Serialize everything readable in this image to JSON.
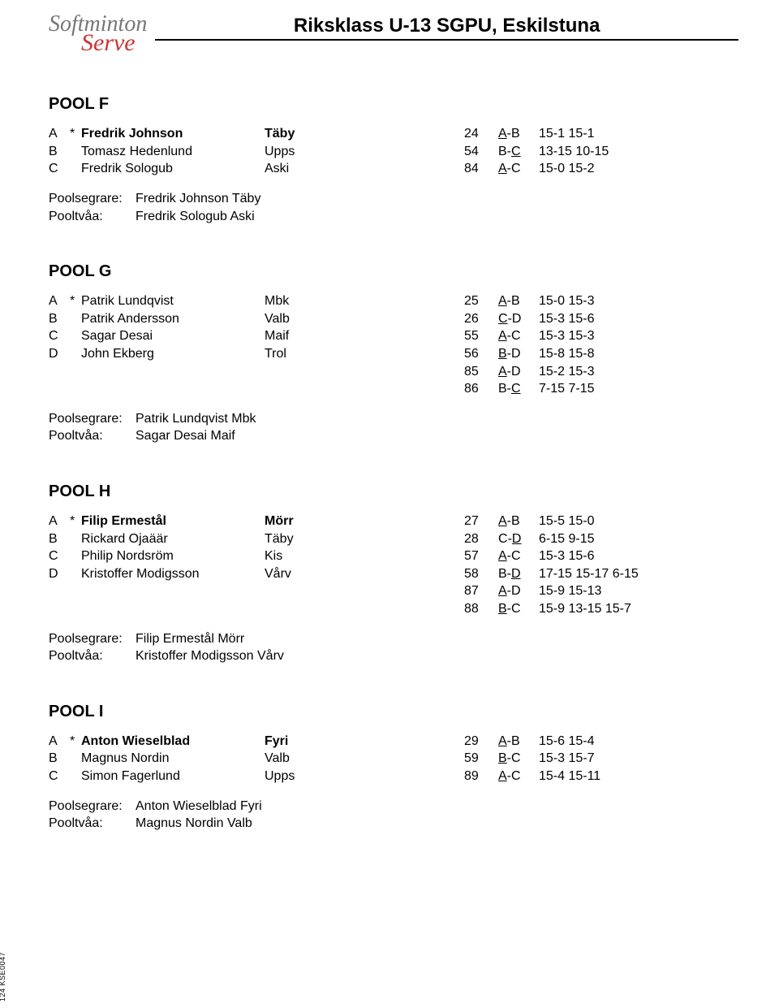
{
  "header": {
    "logo_top": "Softminton",
    "logo_bottom": "Serve",
    "title": "Riksklass U-13 SGPU, Eskilstuna"
  },
  "side_code": "124  KSE0047",
  "labels": {
    "poolsegrare": "Poolsegrare:",
    "pooltvaa": "Pooltvåa:"
  },
  "pools": [
    {
      "title": "POOL F",
      "players": [
        {
          "letter": "A",
          "star": "*",
          "name": "Fredrik Johnson",
          "club": "Täby",
          "bold": true
        },
        {
          "letter": "B",
          "star": "",
          "name": "Tomasz Hedenlund",
          "club": "Upps",
          "bold": false
        },
        {
          "letter": "C",
          "star": "",
          "name": "Fredrik Sologub",
          "club": "Aski",
          "bold": false
        }
      ],
      "results": [
        {
          "num": "24",
          "p1": "A",
          "p2": "B",
          "winner": "p1",
          "scores": "15-1  15-1"
        },
        {
          "num": "54",
          "p1": "B",
          "p2": "C",
          "winner": "p2",
          "scores": "13-15 10-15"
        },
        {
          "num": "84",
          "p1": "A",
          "p2": "C",
          "winner": "p1",
          "scores": "15-0  15-2"
        }
      ],
      "segrare": "Fredrik Johnson   Täby",
      "tvaa": "Fredrik Sologub   Aski"
    },
    {
      "title": "POOL G",
      "players": [
        {
          "letter": "A",
          "star": "*",
          "name": "Patrik Lundqvist",
          "club": "Mbk",
          "bold": false
        },
        {
          "letter": "B",
          "star": "",
          "name": "Patrik Andersson",
          "club": "Valb",
          "bold": false
        },
        {
          "letter": "C",
          "star": "",
          "name": "Sagar Desai",
          "club": "Maif",
          "bold": false
        },
        {
          "letter": "D",
          "star": "",
          "name": "John Ekberg",
          "club": "Trol",
          "bold": false
        }
      ],
      "results": [
        {
          "num": "25",
          "p1": "A",
          "p2": "B",
          "winner": "p1",
          "scores": "15-0  15-3"
        },
        {
          "num": "26",
          "p1": "C",
          "p2": "D",
          "winner": "p1",
          "scores": "15-3  15-6"
        },
        {
          "num": "55",
          "p1": "A",
          "p2": "C",
          "winner": "p1",
          "scores": "15-3  15-3"
        },
        {
          "num": "56",
          "p1": "B",
          "p2": "D",
          "winner": "p1",
          "scores": "15-8  15-8"
        },
        {
          "num": "85",
          "p1": "A",
          "p2": "D",
          "winner": "p1",
          "scores": "15-2  15-3"
        },
        {
          "num": "86",
          "p1": "B",
          "p2": "C",
          "winner": "p2",
          "scores": "7-15  7-15"
        }
      ],
      "segrare": "Patrik Lundqvist   Mbk",
      "tvaa": "Sagar Desai   Maif"
    },
    {
      "title": "POOL H",
      "players": [
        {
          "letter": "A",
          "star": "*",
          "name": "Filip Ermestål",
          "club": "Mörr",
          "bold": true
        },
        {
          "letter": "B",
          "star": "",
          "name": "Rickard Ojaäär",
          "club": "Täby",
          "bold": false
        },
        {
          "letter": "C",
          "star": "",
          "name": "Philip Nordsröm",
          "club": "Kis",
          "bold": false
        },
        {
          "letter": "D",
          "star": "",
          "name": "Kristoffer Modigsson",
          "club": "Vårv",
          "bold": false
        }
      ],
      "results": [
        {
          "num": "27",
          "p1": "A",
          "p2": "B",
          "winner": "p1",
          "scores": "15-5  15-0"
        },
        {
          "num": "28",
          "p1": "C",
          "p2": "D",
          "winner": "p2",
          "scores": "6-15  9-15"
        },
        {
          "num": "57",
          "p1": "A",
          "p2": "C",
          "winner": "p1",
          "scores": "15-3  15-6"
        },
        {
          "num": "58",
          "p1": "B",
          "p2": "D",
          "winner": "p2",
          "scores": "17-15 15-17 6-15"
        },
        {
          "num": "87",
          "p1": "A",
          "p2": "D",
          "winner": "p1",
          "scores": "15-9  15-13"
        },
        {
          "num": "88",
          "p1": "B",
          "p2": "C",
          "winner": "p1",
          "scores": "15-9  13-15 15-7"
        }
      ],
      "segrare": "Filip Ermestål   Mörr",
      "tvaa": "Kristoffer Modigsson   Vårv"
    },
    {
      "title": "POOL I",
      "players": [
        {
          "letter": "A",
          "star": "*",
          "name": "Anton Wieselblad",
          "club": "Fyri",
          "bold": true
        },
        {
          "letter": "B",
          "star": "",
          "name": "Magnus Nordin",
          "club": "Valb",
          "bold": false
        },
        {
          "letter": "C",
          "star": "",
          "name": "Simon Fagerlund",
          "club": "Upps",
          "bold": false
        }
      ],
      "results": [
        {
          "num": "29",
          "p1": "A",
          "p2": "B",
          "winner": "p1",
          "scores": "15-6  15-4"
        },
        {
          "num": "59",
          "p1": "B",
          "p2": "C",
          "winner": "p1",
          "scores": "15-3  15-7"
        },
        {
          "num": "89",
          "p1": "A",
          "p2": "C",
          "winner": "p1",
          "scores": "15-4  15-11"
        }
      ],
      "segrare": "Anton Wieselblad   Fyri",
      "tvaa": "Magnus Nordin   Valb"
    }
  ]
}
